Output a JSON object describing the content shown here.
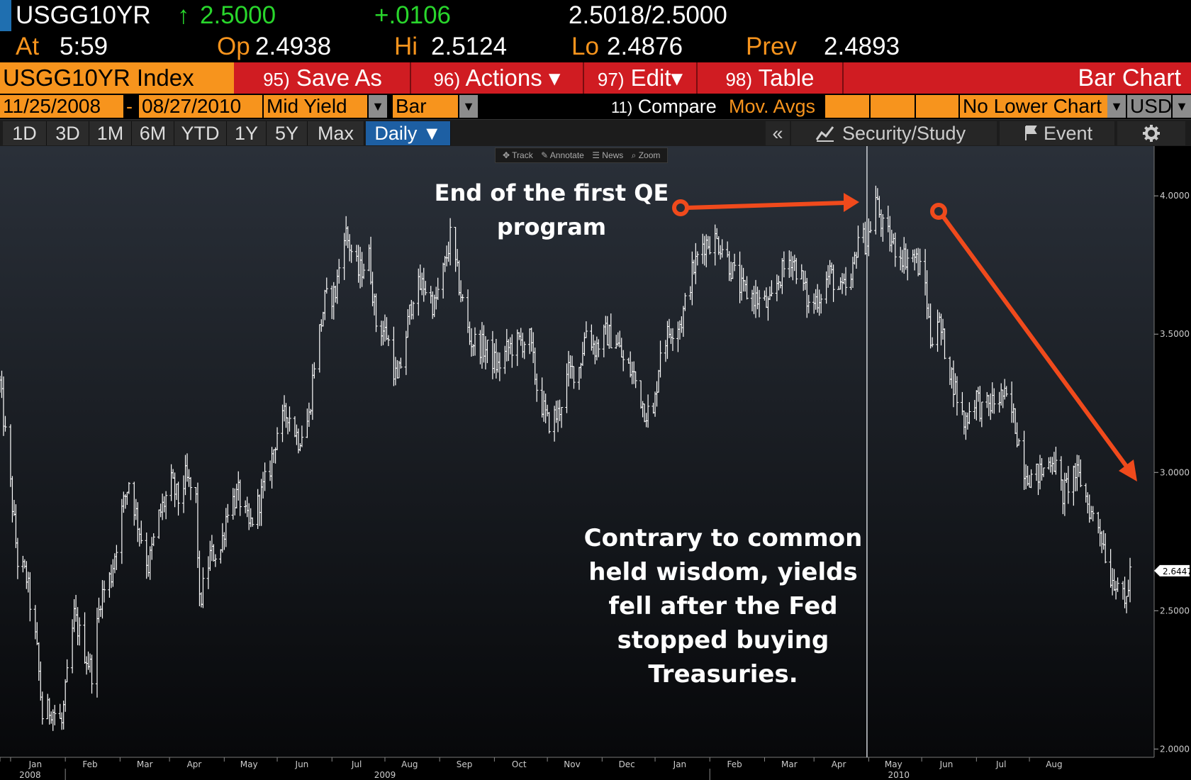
{
  "quote": {
    "ticker": "USGG10YR",
    "arrow": "↑",
    "last": "2.5000",
    "change": "+.0106",
    "bid_ask": "2.5018/2.5000",
    "at_label": "At",
    "at_time": "5:59",
    "op_label": "Op",
    "op": "2.4938",
    "hi_label": "Hi",
    "hi": "2.5124",
    "lo_label": "Lo",
    "lo": "2.4876",
    "prev_label": "Prev",
    "prev": "2.4893"
  },
  "header": {
    "index_title": "USGG10YR Index",
    "buttons": [
      {
        "num": "95)",
        "label": "Save As"
      },
      {
        "num": "96)",
        "label": "Actions ▾"
      },
      {
        "num": "97)",
        "label": "Edit▾"
      },
      {
        "num": "98)",
        "label": "Table"
      }
    ],
    "chart_type": "Bar Chart"
  },
  "params": {
    "start_date": "11/25/2008",
    "dash": "-",
    "end_date": "08/27/2010",
    "field": "Mid Yield",
    "style": "Bar",
    "compare_num": "11)",
    "compare_label": "Compare",
    "mov_avgs": "Mov. Avgs",
    "lower_chart": "No Lower Chart",
    "currency": "USD"
  },
  "toolbar": {
    "periods": [
      "1D",
      "3D",
      "1M",
      "6M",
      "YTD",
      "1Y",
      "5Y",
      "Max"
    ],
    "frequency": "Daily ▼",
    "collapse": "«",
    "security_study": "Security/Study",
    "event": "Event",
    "settings_icon": "gear-icon"
  },
  "mini_tools": [
    "✥ Track",
    "✎ Annotate",
    "☰ News",
    "⌕ Zoom"
  ],
  "colors": {
    "orange": "#f7941d",
    "red_bar": "#d01c22",
    "green": "#29d62c",
    "annotation_arrow": "#f04a1c",
    "bars": "#ffffff"
  },
  "chart_data": {
    "type": "bar",
    "title": "",
    "xlabel": "",
    "ylabel": "",
    "ylim": [
      1.97,
      4.18
    ],
    "y_ticks": [
      "2.0000",
      "2.5000",
      "3.0000",
      "3.5000",
      "4.0000"
    ],
    "last_value_label": "2.6447",
    "months": [
      "Dec",
      "Jan",
      "Feb",
      "Mar",
      "Apr",
      "May",
      "Jun",
      "Jul",
      "Aug",
      "Sep",
      "Oct",
      "Nov",
      "Dec",
      "Jan",
      "Feb",
      "Mar",
      "Apr",
      "May",
      "Jun",
      "Jul",
      "Aug"
    ],
    "years": [
      "2008",
      "2009",
      "2010"
    ],
    "series": [
      {
        "values": [
          [
            "2008-11-25",
            3.32
          ],
          [
            "2008-12-01",
            2.95
          ],
          [
            "2008-12-05",
            2.68
          ],
          [
            "2008-12-10",
            2.62
          ],
          [
            "2008-12-16",
            2.35
          ],
          [
            "2008-12-19",
            2.12
          ],
          [
            "2008-12-24",
            2.15
          ],
          [
            "2008-12-30",
            2.09
          ],
          [
            "2009-01-06",
            2.48
          ],
          [
            "2009-01-12",
            2.35
          ],
          [
            "2009-01-16",
            2.28
          ],
          [
            "2009-01-21",
            2.55
          ],
          [
            "2009-01-27",
            2.63
          ],
          [
            "2009-02-02",
            2.86
          ],
          [
            "2009-02-06",
            2.97
          ],
          [
            "2009-02-11",
            2.82
          ],
          [
            "2009-02-17",
            2.66
          ],
          [
            "2009-02-23",
            2.84
          ],
          [
            "2009-03-02",
            2.96
          ],
          [
            "2009-03-06",
            2.9
          ],
          [
            "2009-03-10",
            2.98
          ],
          [
            "2009-03-16",
            2.9
          ],
          [
            "2009-03-18",
            2.52
          ],
          [
            "2009-03-24",
            2.7
          ],
          [
            "2009-03-30",
            2.72
          ],
          [
            "2009-04-03",
            2.88
          ],
          [
            "2009-04-09",
            2.92
          ],
          [
            "2009-04-15",
            2.8
          ],
          [
            "2009-04-21",
            2.9
          ],
          [
            "2009-04-27",
            3.02
          ],
          [
            "2009-05-01",
            3.15
          ],
          [
            "2009-05-07",
            3.22
          ],
          [
            "2009-05-13",
            3.12
          ],
          [
            "2009-05-19",
            3.2
          ],
          [
            "2009-05-22",
            3.4
          ],
          [
            "2009-05-28",
            3.62
          ],
          [
            "2009-06-03",
            3.65
          ],
          [
            "2009-06-08",
            3.88
          ],
          [
            "2009-06-11",
            3.82
          ],
          [
            "2009-06-16",
            3.72
          ],
          [
            "2009-06-22",
            3.78
          ],
          [
            "2009-06-26",
            3.54
          ],
          [
            "2009-07-02",
            3.5
          ],
          [
            "2009-07-08",
            3.32
          ],
          [
            "2009-07-13",
            3.5
          ],
          [
            "2009-07-17",
            3.65
          ],
          [
            "2009-07-23",
            3.68
          ],
          [
            "2009-07-29",
            3.6
          ],
          [
            "2009-08-04",
            3.75
          ],
          [
            "2009-08-07",
            3.85
          ],
          [
            "2009-08-12",
            3.68
          ],
          [
            "2009-08-18",
            3.48
          ],
          [
            "2009-08-24",
            3.46
          ],
          [
            "2009-08-28",
            3.44
          ],
          [
            "2009-09-03",
            3.38
          ],
          [
            "2009-09-09",
            3.45
          ],
          [
            "2009-09-15",
            3.47
          ],
          [
            "2009-09-21",
            3.48
          ],
          [
            "2009-09-25",
            3.31
          ],
          [
            "2009-10-01",
            3.18
          ],
          [
            "2009-10-07",
            3.21
          ],
          [
            "2009-10-13",
            3.36
          ],
          [
            "2009-10-19",
            3.38
          ],
          [
            "2009-10-23",
            3.52
          ],
          [
            "2009-10-28",
            3.45
          ],
          [
            "2009-11-03",
            3.5
          ],
          [
            "2009-11-09",
            3.48
          ],
          [
            "2009-11-13",
            3.4
          ],
          [
            "2009-11-19",
            3.35
          ],
          [
            "2009-11-25",
            3.23
          ],
          [
            "2009-11-30",
            3.2
          ],
          [
            "2009-12-04",
            3.45
          ],
          [
            "2009-12-10",
            3.52
          ],
          [
            "2009-12-16",
            3.55
          ],
          [
            "2009-12-22",
            3.72
          ],
          [
            "2009-12-28",
            3.83
          ],
          [
            "2010-01-04",
            3.84
          ],
          [
            "2010-01-08",
            3.82
          ],
          [
            "2010-01-13",
            3.74
          ],
          [
            "2010-01-19",
            3.66
          ],
          [
            "2010-01-25",
            3.64
          ],
          [
            "2010-01-29",
            3.62
          ],
          [
            "2010-02-04",
            3.6
          ],
          [
            "2010-02-09",
            3.7
          ],
          [
            "2010-02-16",
            3.78
          ],
          [
            "2010-02-22",
            3.7
          ],
          [
            "2010-02-26",
            3.6
          ],
          [
            "2010-03-04",
            3.64
          ],
          [
            "2010-03-10",
            3.72
          ],
          [
            "2010-03-16",
            3.65
          ],
          [
            "2010-03-22",
            3.68
          ],
          [
            "2010-03-26",
            3.86
          ],
          [
            "2010-03-31",
            3.83
          ],
          [
            "2010-04-05",
            3.99
          ],
          [
            "2010-04-09",
            3.88
          ],
          [
            "2010-04-15",
            3.82
          ],
          [
            "2010-04-21",
            3.78
          ],
          [
            "2010-04-27",
            3.78
          ],
          [
            "2010-05-03",
            3.68
          ],
          [
            "2010-05-06",
            3.48
          ],
          [
            "2010-05-10",
            3.56
          ],
          [
            "2010-05-14",
            3.45
          ],
          [
            "2010-05-20",
            3.3
          ],
          [
            "2010-05-25",
            3.18
          ],
          [
            "2010-06-01",
            3.28
          ],
          [
            "2010-06-04",
            3.22
          ],
          [
            "2010-06-10",
            3.25
          ],
          [
            "2010-06-16",
            3.28
          ],
          [
            "2010-06-22",
            3.2
          ],
          [
            "2010-06-28",
            3.02
          ],
          [
            "2010-07-02",
            2.98
          ],
          [
            "2010-07-08",
            3.0
          ],
          [
            "2010-07-14",
            3.06
          ],
          [
            "2010-07-20",
            2.92
          ],
          [
            "2010-07-26",
            3.0
          ],
          [
            "2010-07-30",
            2.97
          ],
          [
            "2010-08-05",
            2.85
          ],
          [
            "2010-08-10",
            2.8
          ],
          [
            "2010-08-16",
            2.62
          ],
          [
            "2010-08-20",
            2.61
          ],
          [
            "2010-08-24",
            2.51
          ],
          [
            "2010-08-27",
            2.64
          ]
        ]
      }
    ],
    "annotations": [
      {
        "text": [
          "End of the first QE",
          "program"
        ],
        "arrow": "points to early April 2010 peak"
      },
      {
        "text": [
          "Contrary to common",
          "held wisdom, yields",
          "fell after the Fed",
          "stopped buying",
          "Treasuries."
        ],
        "arrow": "down-right along decline"
      }
    ],
    "vertical_line_date": "2010-03-31"
  }
}
